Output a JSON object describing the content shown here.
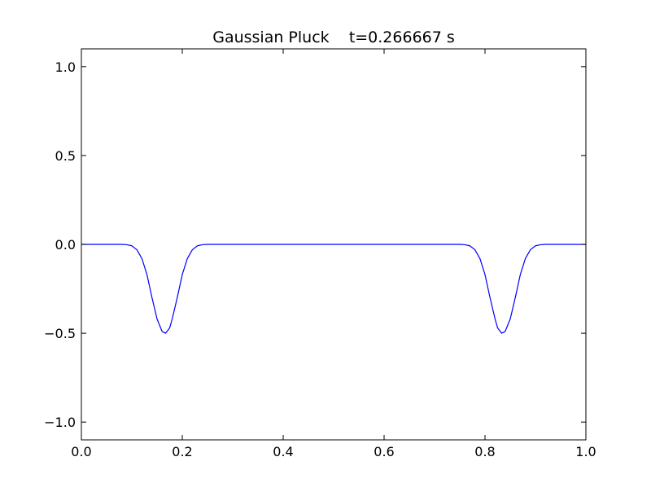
{
  "chart_data": {
    "type": "line",
    "title": "Gaussian Pluck    t=0.266667 s",
    "xlabel": "",
    "ylabel": "",
    "xlim": [
      0.0,
      1.0
    ],
    "ylim": [
      -1.1,
      1.1
    ],
    "x_ticks": [
      {
        "value": 0.0,
        "label": "0.0"
      },
      {
        "value": 0.2,
        "label": "0.2"
      },
      {
        "value": 0.4,
        "label": "0.4"
      },
      {
        "value": 0.6,
        "label": "0.6"
      },
      {
        "value": 0.8,
        "label": "0.8"
      },
      {
        "value": 1.0,
        "label": "1.0"
      }
    ],
    "y_ticks": [
      {
        "value": 1.0,
        "label": "1.0"
      },
      {
        "value": 0.5,
        "label": "0.5"
      },
      {
        "value": 0.0,
        "label": "0.0"
      },
      {
        "value": -0.5,
        "label": "−0.5"
      },
      {
        "value": -1.0,
        "label": "−1.0"
      }
    ],
    "grid": false,
    "legend": "none",
    "line_color": "#0000ff",
    "series": [
      {
        "x": [
          0.0,
          0.05,
          0.08,
          0.09,
          0.1,
          0.11,
          0.12,
          0.13,
          0.14,
          0.15,
          0.16,
          0.167,
          0.175,
          0.18,
          0.19,
          0.2,
          0.21,
          0.22,
          0.23,
          0.24,
          0.25,
          0.3,
          0.4,
          0.5,
          0.6,
          0.7,
          0.75,
          0.76,
          0.77,
          0.78,
          0.79,
          0.8,
          0.81,
          0.82,
          0.825,
          0.833,
          0.84,
          0.85,
          0.86,
          0.87,
          0.88,
          0.89,
          0.9,
          0.91,
          0.92,
          0.95,
          1.0
        ],
        "y": [
          0.0,
          0.0,
          0.0,
          -0.002,
          -0.008,
          -0.03,
          -0.08,
          -0.17,
          -0.3,
          -0.42,
          -0.49,
          -0.5,
          -0.47,
          -0.42,
          -0.3,
          -0.17,
          -0.08,
          -0.03,
          -0.008,
          -0.002,
          0.0,
          0.0,
          0.0,
          0.0,
          0.0,
          0.0,
          0.0,
          -0.002,
          -0.008,
          -0.03,
          -0.08,
          -0.17,
          -0.3,
          -0.42,
          -0.47,
          -0.5,
          -0.49,
          -0.42,
          -0.3,
          -0.17,
          -0.08,
          -0.03,
          -0.008,
          -0.002,
          0.0,
          0.0,
          0.0
        ]
      }
    ]
  }
}
